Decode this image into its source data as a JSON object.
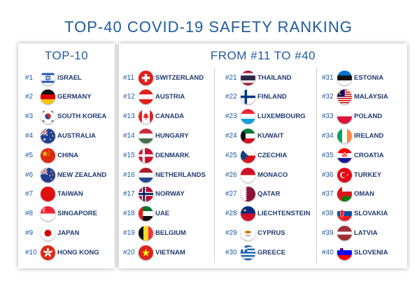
{
  "title": "TOP-40 COVID-19 SAFETY RANKING",
  "top10": {
    "heading": "TOP-10",
    "entries": [
      {
        "rank": "#1",
        "country": "ISRAEL",
        "flag": "israel-flag-icon"
      },
      {
        "rank": "#2",
        "country": "GERMANY",
        "flag": "germany-flag-icon"
      },
      {
        "rank": "#3",
        "country": "SOUTH KOREA",
        "flag": "south-korea-flag-icon"
      },
      {
        "rank": "#4",
        "country": "AUSTRALIA",
        "flag": "australia-flag-icon"
      },
      {
        "rank": "#5",
        "country": "CHINA",
        "flag": "china-flag-icon"
      },
      {
        "rank": "#6",
        "country": "NEW ZEALAND",
        "flag": "new-zealand-flag-icon"
      },
      {
        "rank": "#7",
        "country": "TAIWAN",
        "flag": "taiwan-flag-icon"
      },
      {
        "rank": "#8",
        "country": "SINGAPORE",
        "flag": "singapore-flag-icon"
      },
      {
        "rank": "#9",
        "country": "JAPAN",
        "flag": "japan-flag-icon"
      },
      {
        "rank": "#10",
        "country": "HONG KONG",
        "flag": "hong-kong-flag-icon"
      }
    ]
  },
  "rest": {
    "heading": "FROM #11 TO #40",
    "col1": [
      {
        "rank": "#11",
        "country": "SWITZERLAND",
        "flag": "switzerland-flag-icon"
      },
      {
        "rank": "#12",
        "country": "AUSTRIA",
        "flag": "austria-flag-icon"
      },
      {
        "rank": "#13",
        "country": "CANADA",
        "flag": "canada-flag-icon"
      },
      {
        "rank": "#14",
        "country": "HUNGARY",
        "flag": "hungary-flag-icon"
      },
      {
        "rank": "#15",
        "country": "DENMARK",
        "flag": "denmark-flag-icon"
      },
      {
        "rank": "#16",
        "country": "NETHERLANDS",
        "flag": "netherlands-flag-icon"
      },
      {
        "rank": "#17",
        "country": "NORWAY",
        "flag": "norway-flag-icon"
      },
      {
        "rank": "#18",
        "country": "UAE",
        "flag": "uae-flag-icon"
      },
      {
        "rank": "#19",
        "country": "BELGIUM",
        "flag": "belgium-flag-icon"
      },
      {
        "rank": "#20",
        "country": "VIETNAM",
        "flag": "vietnam-flag-icon"
      }
    ],
    "col2": [
      {
        "rank": "#21",
        "country": "THAILAND",
        "flag": "thailand-flag-icon"
      },
      {
        "rank": "#22",
        "country": "FINLAND",
        "flag": "finland-flag-icon"
      },
      {
        "rank": "#23",
        "country": "LUXEMBOURG",
        "flag": "luxembourg-flag-icon"
      },
      {
        "rank": "#24",
        "country": "KUWAIT",
        "flag": "kuwait-flag-icon"
      },
      {
        "rank": "#25",
        "country": "CZECHIA",
        "flag": "czechia-flag-icon"
      },
      {
        "rank": "#26",
        "country": "MONACO",
        "flag": "monaco-flag-icon"
      },
      {
        "rank": "#27",
        "country": "QATAR",
        "flag": "qatar-flag-icon"
      },
      {
        "rank": "#28",
        "country": "LIECHTENSTEIN",
        "flag": "liechtenstein-flag-icon"
      },
      {
        "rank": "#29",
        "country": "CYPRUS",
        "flag": "cyprus-flag-icon"
      },
      {
        "rank": "#30",
        "country": "GREECE",
        "flag": "greece-flag-icon"
      }
    ],
    "col3": [
      {
        "rank": "#31",
        "country": "ESTONIA",
        "flag": "estonia-flag-icon"
      },
      {
        "rank": "#32",
        "country": "MALAYSIA",
        "flag": "malaysia-flag-icon"
      },
      {
        "rank": "#33",
        "country": "POLAND",
        "flag": "poland-flag-icon"
      },
      {
        "rank": "#34",
        "country": "IRELAND",
        "flag": "ireland-flag-icon"
      },
      {
        "rank": "#35",
        "country": "CROATIA",
        "flag": "croatia-flag-icon"
      },
      {
        "rank": "#36",
        "country": "TURKEY",
        "flag": "turkey-flag-icon"
      },
      {
        "rank": "#37",
        "country": "OMAN",
        "flag": "oman-flag-icon"
      },
      {
        "rank": "#38",
        "country": "SLOVAKIA",
        "flag": "slovakia-flag-icon"
      },
      {
        "rank": "#39",
        "country": "LATVIA",
        "flag": "latvia-flag-icon"
      },
      {
        "rank": "#40",
        "country": "SLOVENIA",
        "flag": "slovenia-flag-icon"
      }
    ]
  },
  "colors": {
    "accent": "#1f5a9e",
    "text": "#1f3a70"
  }
}
